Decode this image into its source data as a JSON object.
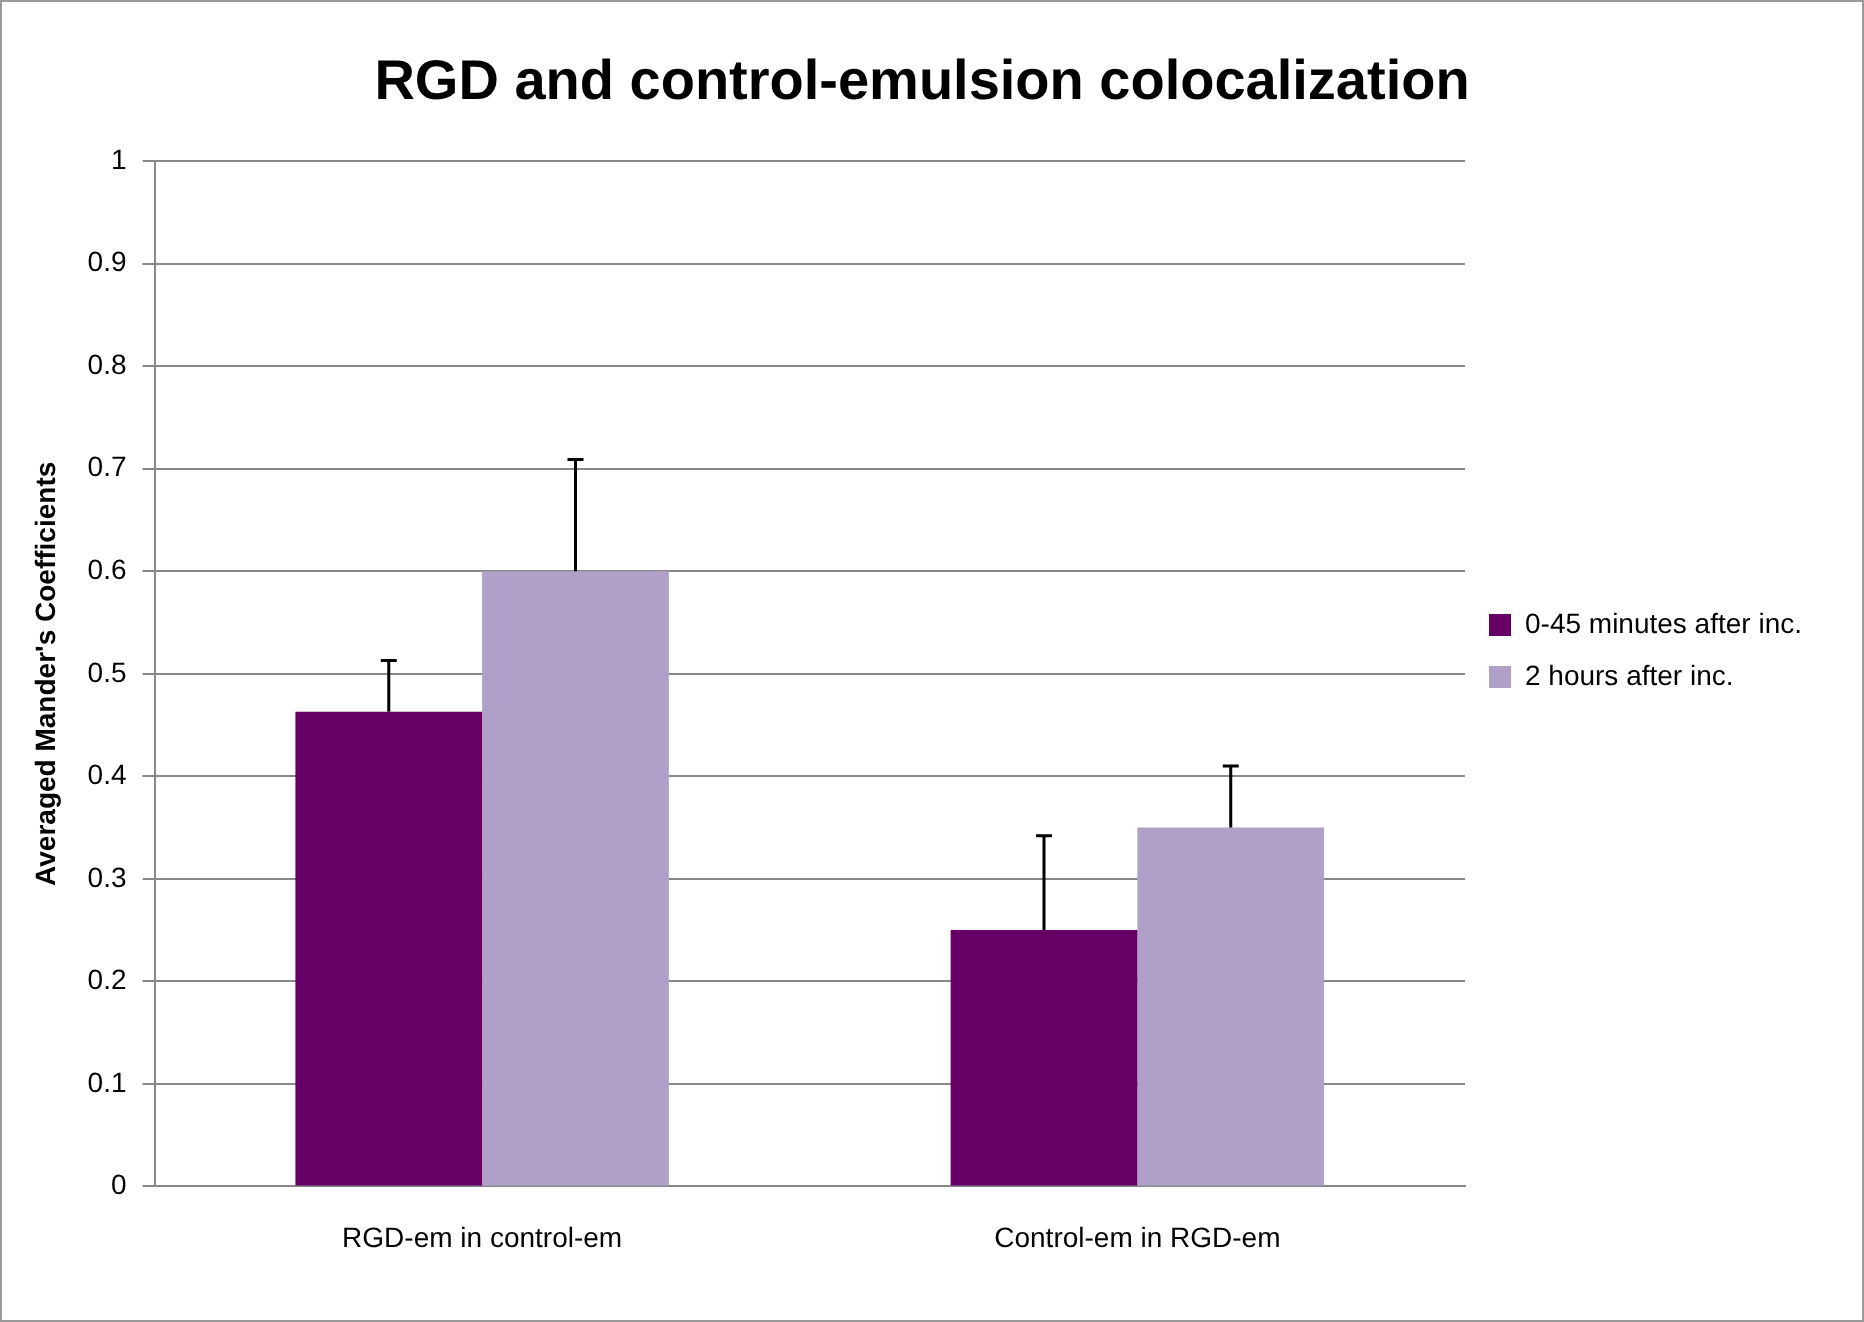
{
  "chart_data": {
    "type": "bar",
    "title": "RGD and control-emulsion colocalization",
    "ylabel": "Averaged Mander's Coefficients",
    "categories": [
      "RGD-em in control-em",
      "Control-em in RGD-em"
    ],
    "series": [
      {
        "name": "0-45 minutes after inc.",
        "color": "#660066",
        "values": [
          0.463,
          0.25
        ],
        "errors": [
          [
            0.463,
            0.513
          ],
          [
            0.25,
            0.342
          ]
        ]
      },
      {
        "name": "2 hours after inc.",
        "color": "#b0a0c8",
        "values": [
          0.6,
          0.35
        ],
        "errors": [
          [
            0.6,
            0.709
          ],
          [
            0.35,
            0.41
          ]
        ]
      }
    ],
    "ylim": [
      0,
      1
    ],
    "yticks": [
      0,
      0.1,
      0.2,
      0.3,
      0.4,
      0.5,
      0.6,
      0.7,
      0.8,
      0.9,
      1
    ],
    "grid": "y",
    "legend": "right"
  }
}
